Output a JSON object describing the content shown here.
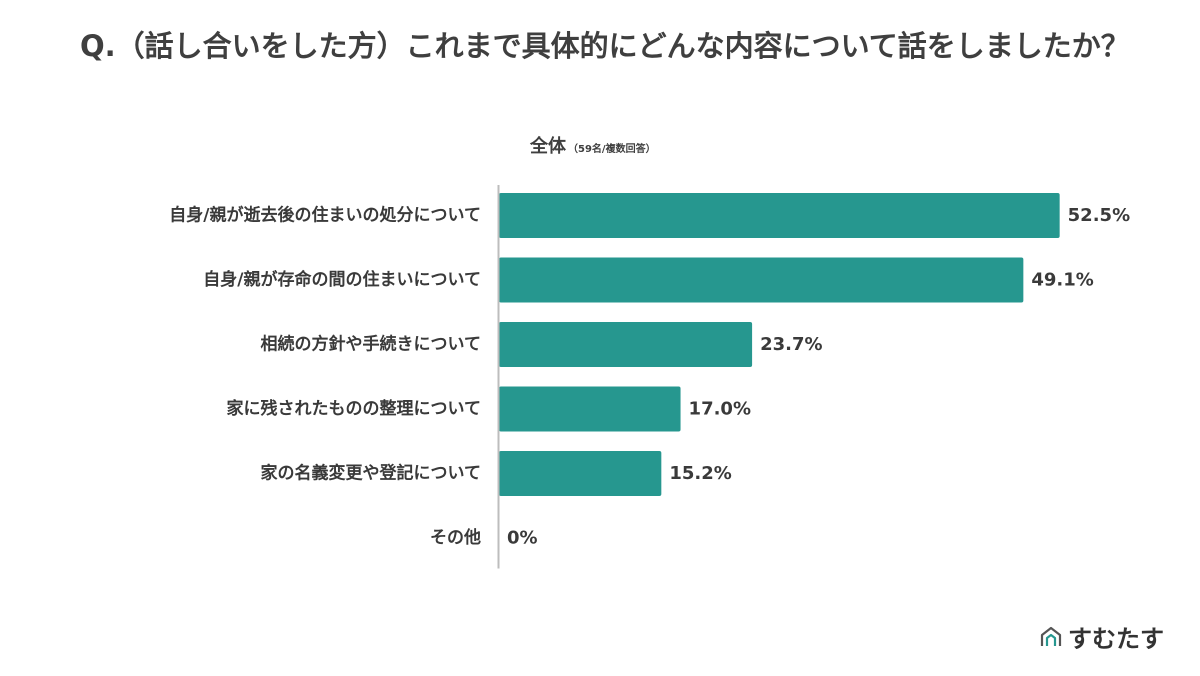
{
  "question": "Q.（話し合いをした方）これまで具体的にどんな内容について話をしましたか？",
  "subtitle": {
    "label": "全体",
    "note": "（59名/複数回答）"
  },
  "brand": {
    "name": "すむたす",
    "icon": "house-logo-icon"
  },
  "colors": {
    "bar": "#26978f",
    "text": "#3a3a3a",
    "axis": "#bdbdbd"
  },
  "chart_data": {
    "type": "bar",
    "orientation": "horizontal",
    "categories": [
      "自身/親が逝去後の住まいの処分について",
      "自身/親が存命の間の住まいについて",
      "相続の方針や手続きについて",
      "家に残されたものの整理について",
      "家の名義変更や登記について",
      "その他"
    ],
    "values": [
      52.5,
      49.1,
      23.7,
      17.0,
      15.2,
      0
    ],
    "value_labels": [
      "52.5%",
      "49.1%",
      "23.7%",
      "17.0%",
      "15.2%",
      "0%"
    ],
    "xlim": [
      0,
      53
    ],
    "grid": false,
    "legend": "none"
  }
}
